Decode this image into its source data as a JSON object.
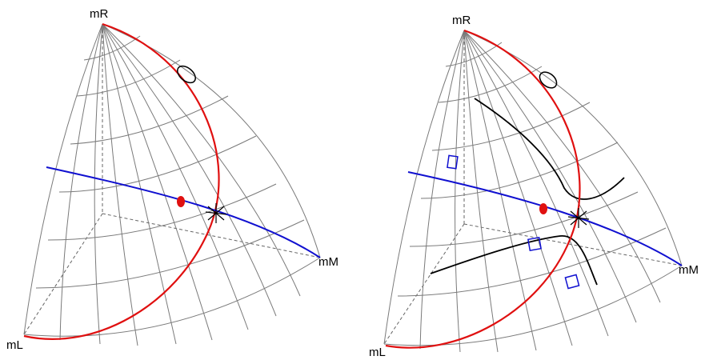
{
  "panels": [
    {
      "id": "left",
      "labels": {
        "top": "mR",
        "right": "mM",
        "bottom": "mL"
      },
      "markers": [
        "black-ellipse",
        "red-dot",
        "black-star"
      ],
      "curves": [
        "red-boundary-curve",
        "blue-line"
      ]
    },
    {
      "id": "right",
      "labels": {
        "top": "mR",
        "right": "mM",
        "bottom": "mL"
      },
      "markers": [
        "black-ellipse",
        "red-dot",
        "black-star",
        "blue-squares"
      ],
      "curves": [
        "red-boundary-curve",
        "blue-line",
        "black-curves"
      ]
    }
  ],
  "colors": {
    "grid": "#7a7a7a",
    "axes_dashed": "#666666",
    "red_curve": "#e01010",
    "blue_line": "#1010d0",
    "black_curve": "#000000"
  }
}
